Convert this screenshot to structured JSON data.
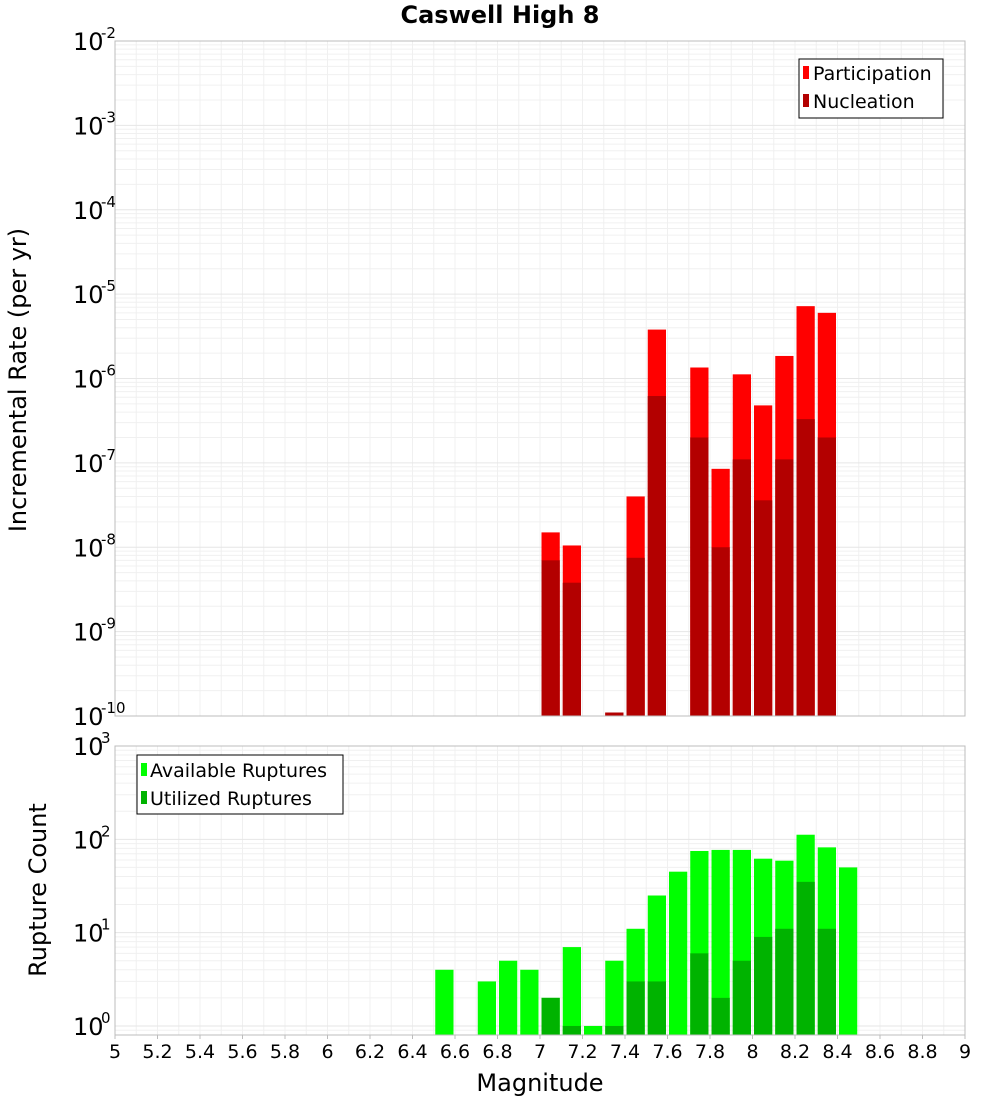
{
  "chart_data": [
    {
      "type": "bar",
      "title": "Caswell High 8",
      "xlabel": "",
      "ylabel": "Incremental Rate (per yr)",
      "yscale": "log",
      "ylim": [
        1e-10,
        0.01
      ],
      "xlim": [
        5,
        9
      ],
      "legend_position": "top-right",
      "series": [
        {
          "name": "Participation",
          "color": "#ff0000",
          "x": [
            7.0,
            7.1,
            7.3,
            7.4,
            7.5,
            7.7,
            7.8,
            7.9,
            8.0,
            8.1,
            8.2,
            8.3
          ],
          "values": [
            1.5e-08,
            1.05e-08,
            1.1e-10,
            4e-08,
            3.8e-06,
            1.35e-06,
            8.5e-08,
            1.12e-06,
            4.8e-07,
            1.85e-06,
            7.2e-06,
            6e-06
          ]
        },
        {
          "name": "Nucleation",
          "color": "#b30000",
          "x": [
            7.0,
            7.1,
            7.3,
            7.4,
            7.5,
            7.7,
            7.8,
            7.9,
            8.0,
            8.1,
            8.2,
            8.3
          ],
          "values": [
            7e-09,
            3.8e-09,
            1.1e-10,
            7.5e-09,
            6.2e-07,
            2e-07,
            1e-08,
            1.1e-07,
            3.6e-08,
            1.1e-07,
            3.3e-07,
            2e-07
          ]
        }
      ]
    },
    {
      "type": "bar",
      "title": "",
      "xlabel": "Magnitude",
      "ylabel": "Rupture Count",
      "yscale": "log",
      "ylim": [
        0.8,
        1000
      ],
      "xlim": [
        5,
        9
      ],
      "legend_position": "top-left",
      "series": [
        {
          "name": "Available Ruptures",
          "color": "#00ff00",
          "x": [
            6.5,
            6.7,
            6.8,
            6.9,
            7.0,
            7.1,
            7.2,
            7.3,
            7.4,
            7.5,
            7.6,
            7.7,
            7.8,
            7.9,
            8.0,
            8.1,
            8.2,
            8.3,
            8.4
          ],
          "values": [
            4,
            3,
            5,
            4,
            2,
            7,
            1,
            5,
            11,
            25,
            45,
            75,
            77,
            77,
            62,
            59,
            112,
            82,
            50
          ]
        },
        {
          "name": "Utilized Ruptures",
          "color": "#00b300",
          "x": [
            7.0,
            7.1,
            7.3,
            7.4,
            7.5,
            7.7,
            7.8,
            7.9,
            8.0,
            8.1,
            8.2,
            8.3
          ],
          "values": [
            2,
            1,
            1,
            3,
            3,
            6,
            2,
            5,
            9,
            11,
            35,
            11
          ]
        }
      ]
    }
  ],
  "x_ticks": [
    "5",
    "5.2",
    "5.4",
    "5.6",
    "5.8",
    "6",
    "6.2",
    "6.4",
    "6.6",
    "6.8",
    "7",
    "7.2",
    "7.4",
    "7.6",
    "7.8",
    "8",
    "8.2",
    "8.4",
    "8.6",
    "8.8",
    "9"
  ],
  "top_y_exponents": [
    "-10",
    "-9",
    "-8",
    "-7",
    "-6",
    "-5",
    "-4",
    "-3",
    "-2"
  ],
  "bottom_y_exponents": [
    "0",
    "1",
    "2",
    "3"
  ],
  "tick_base": "10"
}
